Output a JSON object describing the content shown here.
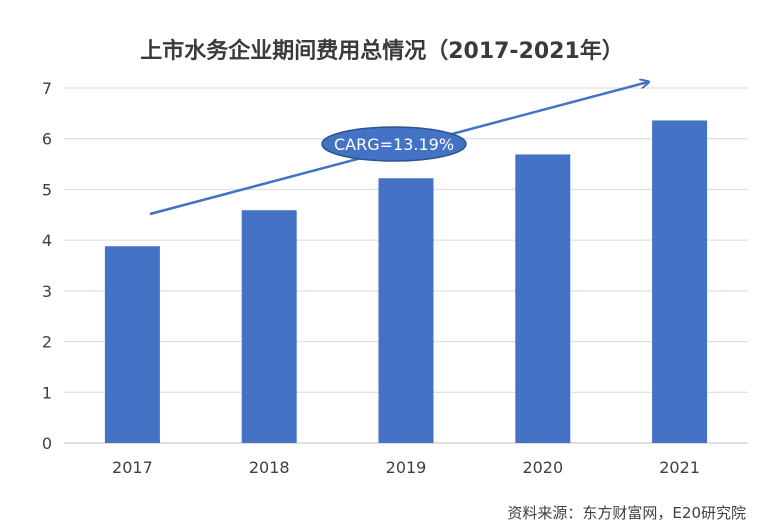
{
  "chart_data": {
    "type": "bar",
    "title": "上市水务企业期间费用总情况（2017-2021年）",
    "categories": [
      "2017",
      "2018",
      "2019",
      "2020",
      "2021"
    ],
    "values": [
      3.88,
      4.59,
      5.22,
      5.69,
      6.36
    ],
    "ylim": [
      0,
      7
    ],
    "yticks": [
      "0",
      "1",
      "2",
      "3",
      "4",
      "5",
      "6",
      "7"
    ],
    "grid": true,
    "bar_color": "#4472C4",
    "annotation": "CARG=13.19%",
    "source": "资料来源：东方财富网，E20研究院"
  }
}
